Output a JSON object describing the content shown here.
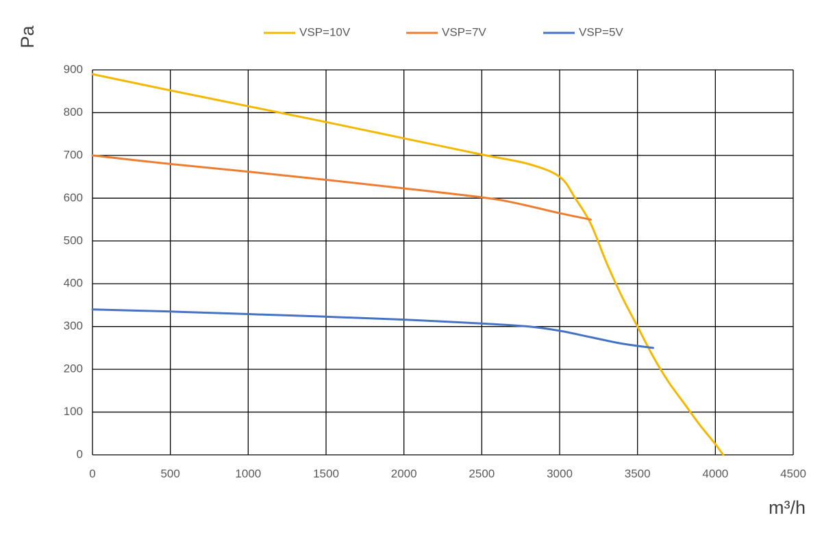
{
  "chart_data": {
    "type": "line",
    "title": "",
    "xlabel": "m³/h",
    "ylabel": "Pa",
    "xlim": [
      0,
      4500
    ],
    "ylim": [
      0,
      900
    ],
    "xticks": [
      0,
      500,
      1000,
      1500,
      2000,
      2500,
      3000,
      3500,
      4000,
      4500
    ],
    "yticks": [
      0,
      100,
      200,
      300,
      400,
      500,
      600,
      700,
      800,
      900
    ],
    "grid": true,
    "legend_position": "top",
    "series": [
      {
        "name": "VSP=10V",
        "color": "#F5B800",
        "points": [
          [
            0,
            890
          ],
          [
            500,
            852
          ],
          [
            1000,
            815
          ],
          [
            1500,
            778
          ],
          [
            2000,
            740
          ],
          [
            2500,
            702
          ],
          [
            2800,
            680
          ],
          [
            3000,
            650
          ],
          [
            3100,
            600
          ],
          [
            3200,
            540
          ],
          [
            3300,
            450
          ],
          [
            3400,
            370
          ],
          [
            3500,
            300
          ],
          [
            3600,
            230
          ],
          [
            3700,
            170
          ],
          [
            3800,
            120
          ],
          [
            3900,
            70
          ],
          [
            4000,
            25
          ],
          [
            4050,
            0
          ]
        ]
      },
      {
        "name": "VSP=7V",
        "color": "#ED7D31",
        "points": [
          [
            0,
            700
          ],
          [
            500,
            680
          ],
          [
            1000,
            662
          ],
          [
            1500,
            643
          ],
          [
            2000,
            623
          ],
          [
            2500,
            602
          ],
          [
            2700,
            590
          ],
          [
            3000,
            565
          ],
          [
            3200,
            550
          ]
        ]
      },
      {
        "name": "VSP=5V",
        "color": "#4472C4",
        "points": [
          [
            0,
            340
          ],
          [
            500,
            335
          ],
          [
            1000,
            329
          ],
          [
            1500,
            323
          ],
          [
            2000,
            316
          ],
          [
            2500,
            307
          ],
          [
            2800,
            300
          ],
          [
            3000,
            290
          ],
          [
            3200,
            275
          ],
          [
            3400,
            260
          ],
          [
            3600,
            250
          ]
        ]
      }
    ]
  }
}
